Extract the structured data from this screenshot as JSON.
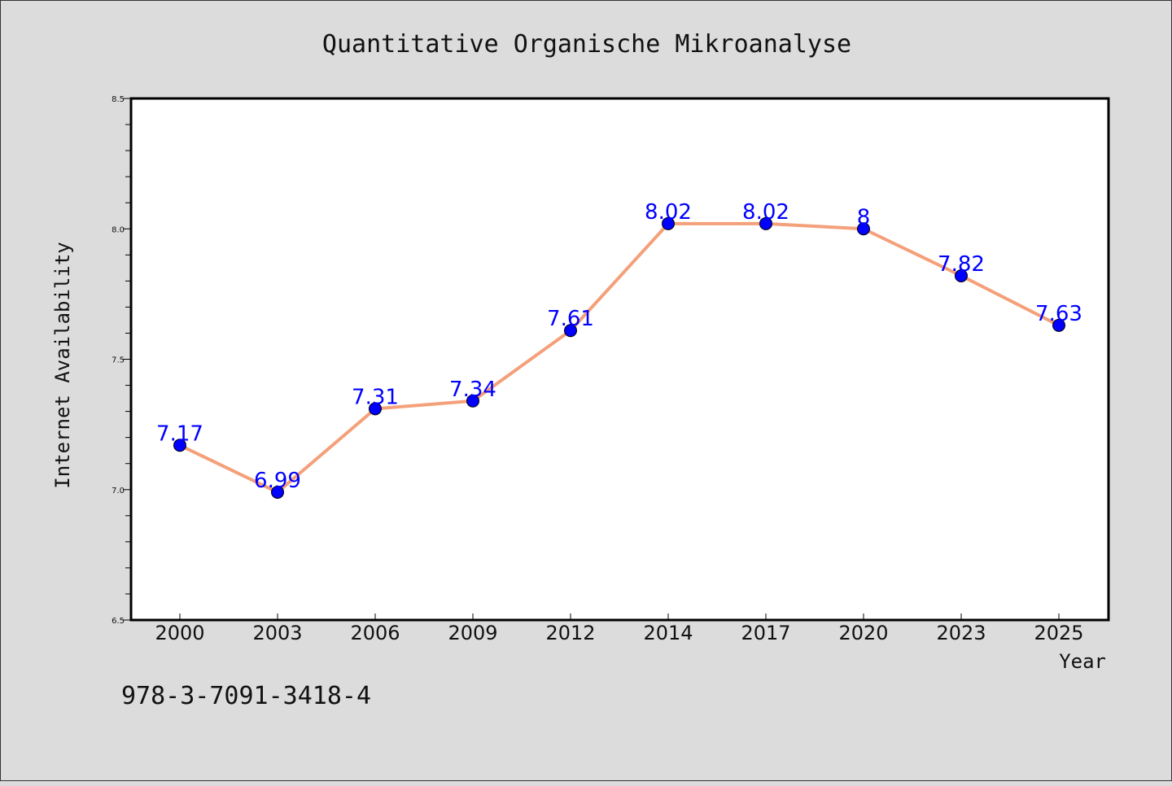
{
  "chart_data": {
    "type": "line",
    "title": "Quantitative Organische Mikroanalyse",
    "xlabel": "Year",
    "ylabel": "Internet Availability",
    "categories": [
      "2000",
      "2003",
      "2006",
      "2009",
      "2012",
      "2014",
      "2017",
      "2020",
      "2023",
      "2025"
    ],
    "series": [
      {
        "values": [
          7.17,
          6.99,
          7.31,
          7.34,
          7.61,
          8.02,
          8.02,
          8,
          7.82,
          7.63
        ],
        "data_labels": [
          "7.17",
          "6.99",
          "7.31",
          "7.34",
          "7.61",
          "8.02",
          "8.02",
          "8",
          "7.82",
          "7.63"
        ]
      }
    ],
    "ylim": [
      6.5,
      8.5
    ],
    "yticks": [
      "6.5",
      "7.0",
      "7.5",
      "8.0",
      "8.5"
    ],
    "grid": false,
    "legend": "none"
  },
  "footer": {
    "isbn": "978-3-7091-3418-4"
  },
  "colors": {
    "background": "#dcdcdc",
    "plot_background": "#ffffff",
    "line": "#f4a07a",
    "marker": "#0000ff",
    "data_label": "#0000ff"
  }
}
